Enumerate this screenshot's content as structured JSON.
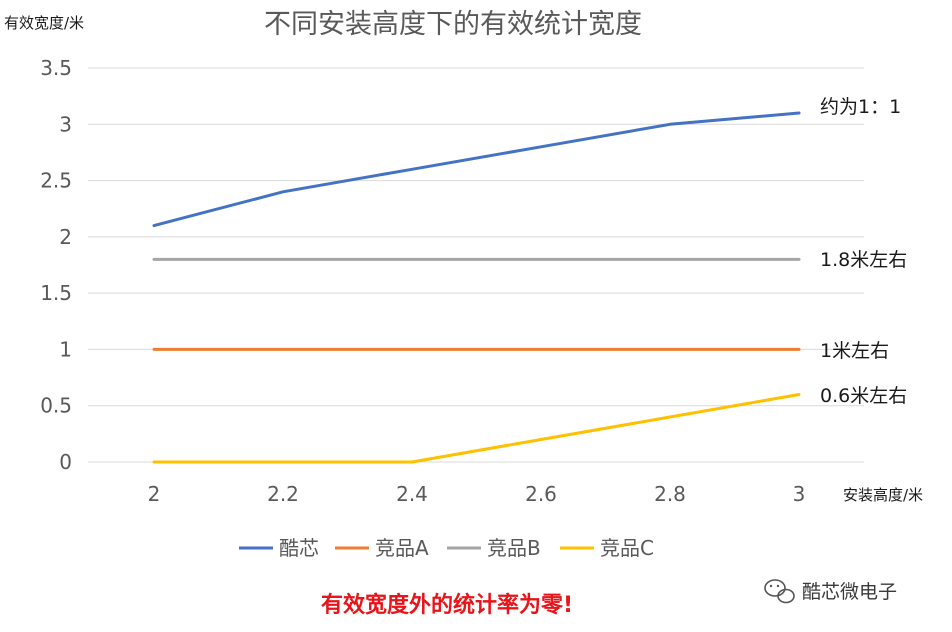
{
  "chart_data": {
    "type": "line",
    "title": "不同安装高度下的有效统计宽度",
    "ylabel": "有效宽度/米",
    "xlabel": "安装高度/米",
    "x": [
      2,
      2.2,
      2.4,
      2.6,
      2.8,
      3
    ],
    "x_tick_labels": [
      "2",
      "2.2",
      "2.4",
      "2.6",
      "2.8",
      "3"
    ],
    "ylim": [
      0,
      3.5
    ],
    "y_ticks": [
      0,
      0.5,
      1,
      1.5,
      2,
      2.5,
      3,
      3.5
    ],
    "y_tick_labels": [
      "0",
      "0.5",
      "1",
      "1.5",
      "2",
      "2.5",
      "3",
      "3.5"
    ],
    "grid": true,
    "legend_position": "bottom",
    "series": [
      {
        "name": "酷芯",
        "color": "#4472c4",
        "values": [
          2.1,
          2.4,
          2.6,
          2.8,
          3.0,
          3.1
        ]
      },
      {
        "name": "竞品A",
        "color": "#ed7d31",
        "values": [
          1,
          1,
          1,
          1,
          1,
          1
        ]
      },
      {
        "name": "竞品B",
        "color": "#a5a5a5",
        "values": [
          1.8,
          1.8,
          1.8,
          1.8,
          1.8,
          1.8
        ]
      },
      {
        "name": "竞品C",
        "color": "#ffc000",
        "values": [
          0,
          0,
          0,
          0.2,
          0.4,
          0.6
        ]
      }
    ],
    "annotations": [
      {
        "text": "约为1：1",
        "series": "酷芯"
      },
      {
        "text": "1.8米左右",
        "series": "竞品B"
      },
      {
        "text": "1米左右",
        "series": "竞品A"
      },
      {
        "text": "0.6米左右",
        "series": "竞品C"
      }
    ]
  },
  "footer_note": "有效宽度外的统计率为零!",
  "watermark": {
    "text": "酷芯微电子",
    "icon": "wechat-icon"
  }
}
